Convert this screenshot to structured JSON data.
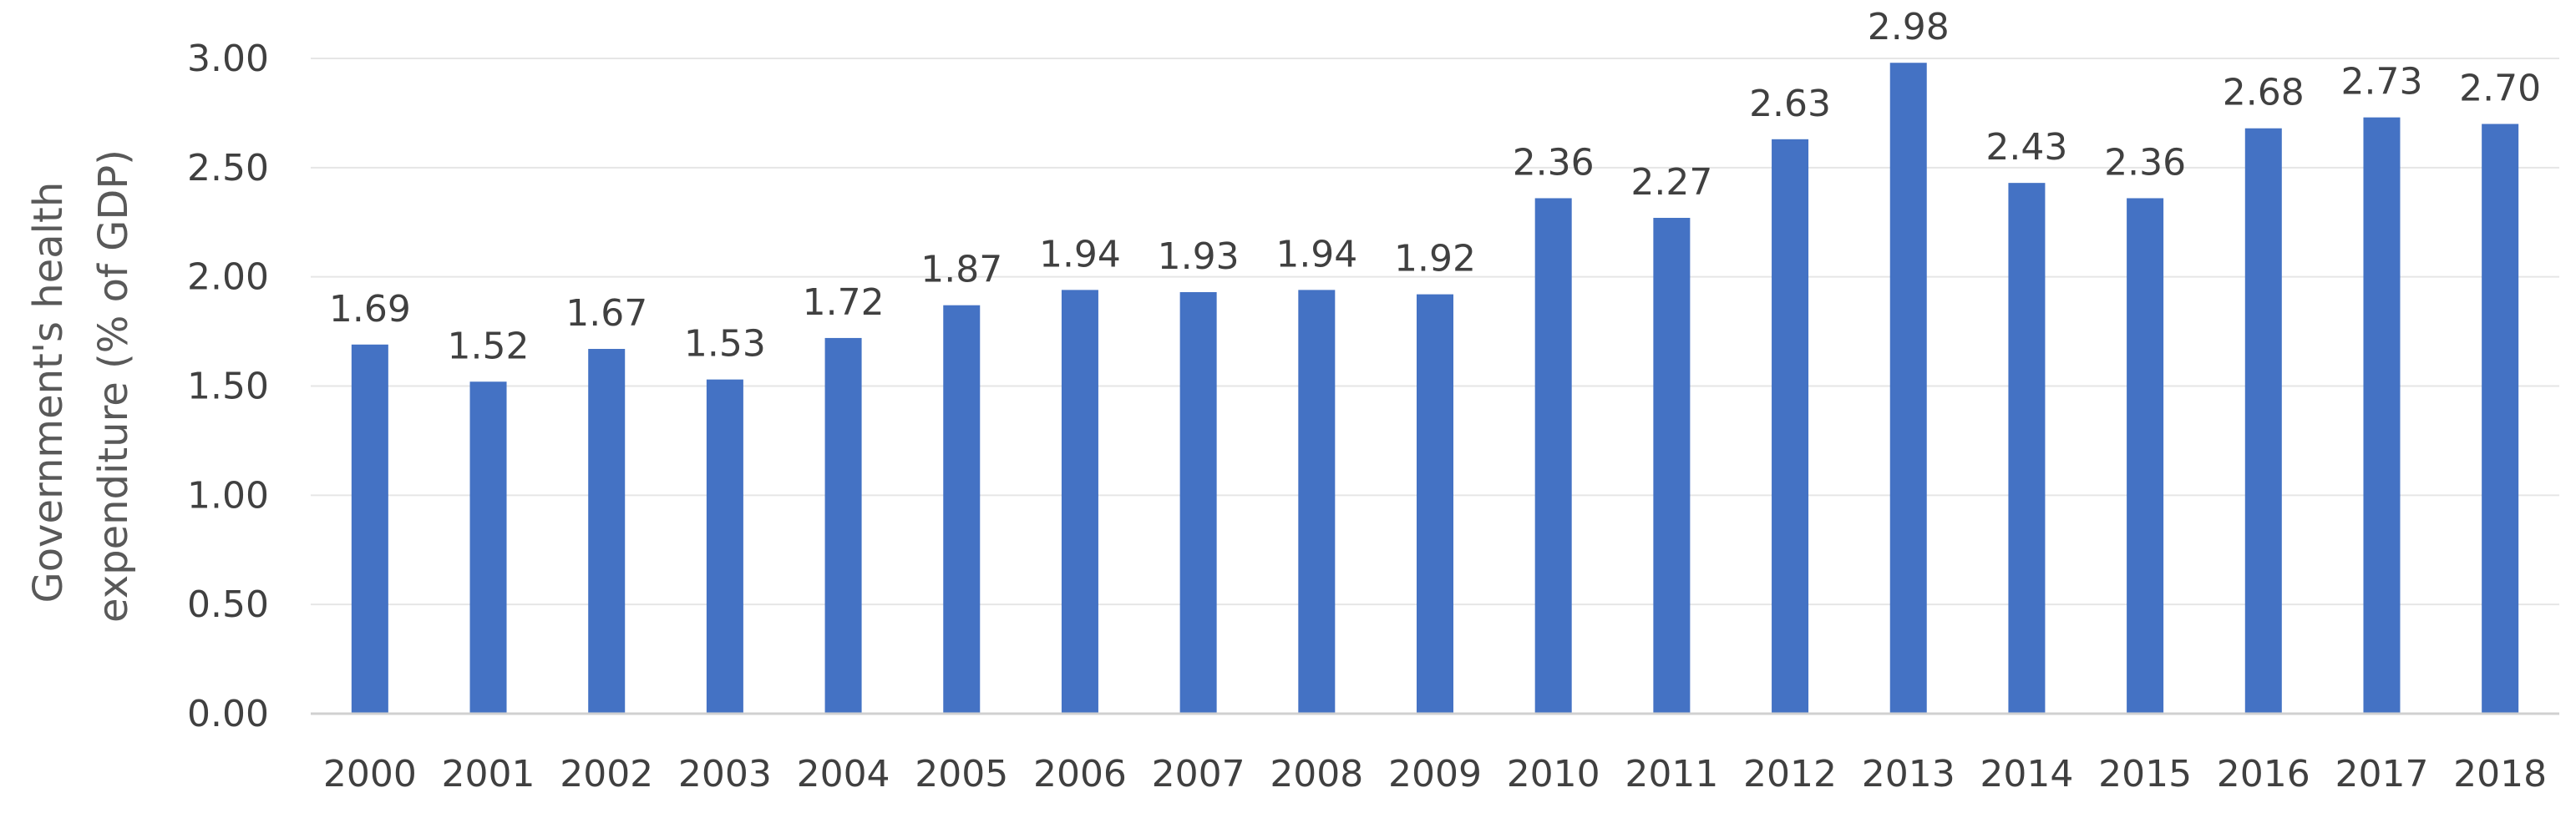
{
  "colors": {
    "bar": "#4472c4",
    "gridline": "#e6e6e6",
    "axis_line": "#d0d0d0",
    "text": "#404040",
    "axis_title": "#595959"
  },
  "chart_data": {
    "type": "bar",
    "title": "",
    "xlabel": "",
    "ylabel": "Government's health expenditure (% of GDP)",
    "ylabel_lines": [
      "Government's health",
      "expenditure (% of GDP)"
    ],
    "categories": [
      "2000",
      "2001",
      "2002",
      "2003",
      "2004",
      "2005",
      "2006",
      "2007",
      "2008",
      "2009",
      "2010",
      "2011",
      "2012",
      "2013",
      "2014",
      "2015",
      "2016",
      "2017",
      "2018"
    ],
    "values": [
      1.69,
      1.52,
      1.67,
      1.53,
      1.72,
      1.87,
      1.94,
      1.93,
      1.94,
      1.92,
      2.36,
      2.27,
      2.63,
      2.98,
      2.43,
      2.36,
      2.68,
      2.73,
      2.7
    ],
    "data_labels": [
      "1.69",
      "1.52",
      "1.67",
      "1.53",
      "1.72",
      "1.87",
      "1.94",
      "1.93",
      "1.94",
      "1.92",
      "2.36",
      "2.27",
      "2.63",
      "2.98",
      "2.43",
      "2.36",
      "2.68",
      "2.73",
      "2.70"
    ],
    "ylim": [
      0,
      3
    ],
    "yticks": [
      0,
      0.5,
      1,
      1.5,
      2,
      2.5,
      3
    ],
    "ytick_labels": [
      "0.00",
      "0.50",
      "1.00",
      "1.50",
      "2.00",
      "2.50",
      "3.00"
    ],
    "grid": true,
    "legend": "none"
  }
}
